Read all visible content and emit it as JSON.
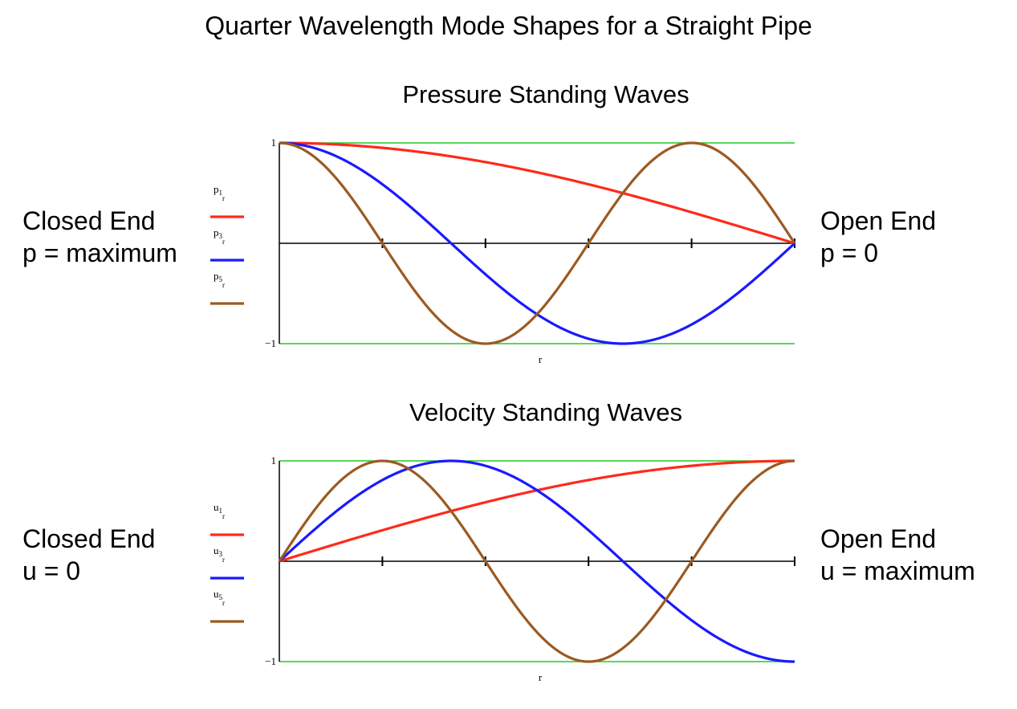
{
  "title": "Quarter Wavelength Mode Shapes for a Straight Pipe",
  "pressure_side": {
    "left": [
      "Closed End",
      "p = maximum"
    ],
    "right": [
      "Open End",
      "p = 0"
    ]
  },
  "velocity_side": {
    "left": [
      "Closed End",
      "u = 0"
    ],
    "right": [
      "Open End",
      "u = maximum"
    ]
  },
  "colors": {
    "red": "#ff2a1a",
    "blue": "#1a1aff",
    "brown": "#9b5a22",
    "green": "#22cc22",
    "axis": "#000000"
  },
  "chart_data": [
    {
      "type": "line",
      "title": "Pressure Standing Waves",
      "xlabel": "r",
      "xlim": [
        0,
        1
      ],
      "ylim": [
        -1,
        1
      ],
      "yticks": [
        {
          "value": 1,
          "label": "1"
        },
        {
          "value": -1,
          "label": "−1"
        }
      ],
      "xticks": [
        0.2,
        0.4,
        0.6,
        0.8,
        1.0
      ],
      "series": [
        {
          "name": "p1",
          "sub": "1",
          "index": "r",
          "letter": "p",
          "color": "#ff2a1a",
          "fn": "cos",
          "mode": 1,
          "x": [
            0,
            0.1,
            0.2,
            0.3,
            0.4,
            0.5,
            0.6,
            0.7,
            0.8,
            0.9,
            1.0
          ],
          "values": [
            1.0,
            0.988,
            0.951,
            0.891,
            0.809,
            0.707,
            0.588,
            0.454,
            0.309,
            0.156,
            0.0
          ]
        },
        {
          "name": "p3",
          "sub": "3",
          "index": "r",
          "letter": "p",
          "color": "#1a1aff",
          "fn": "cos",
          "mode": 3,
          "x": [
            0,
            0.1,
            0.2,
            0.3,
            0.4,
            0.5,
            0.6,
            0.7,
            0.8,
            0.9,
            1.0
          ],
          "values": [
            1.0,
            0.891,
            0.588,
            0.156,
            -0.309,
            -0.707,
            -0.951,
            -0.988,
            -0.809,
            -0.454,
            0.0
          ]
        },
        {
          "name": "p5",
          "sub": "5",
          "index": "r",
          "letter": "p",
          "color": "#9b5a22",
          "fn": "cos",
          "mode": 5,
          "x": [
            0,
            0.1,
            0.2,
            0.3,
            0.4,
            0.5,
            0.6,
            0.7,
            0.8,
            0.9,
            1.0
          ],
          "values": [
            1.0,
            0.707,
            0.0,
            -0.707,
            -1.0,
            -0.707,
            0.0,
            0.707,
            1.0,
            0.707,
            0.0
          ]
        }
      ]
    },
    {
      "type": "line",
      "title": "Velocity Standing Waves",
      "xlabel": "r",
      "xlim": [
        0,
        1
      ],
      "ylim": [
        -1,
        1
      ],
      "yticks": [
        {
          "value": 1,
          "label": "1"
        },
        {
          "value": -1,
          "label": "−1"
        }
      ],
      "xticks": [
        0.2,
        0.4,
        0.6,
        0.8,
        1.0
      ],
      "series": [
        {
          "name": "u1",
          "sub": "1",
          "index": "r",
          "letter": "u",
          "color": "#ff2a1a",
          "fn": "sin",
          "mode": 1,
          "x": [
            0,
            0.1,
            0.2,
            0.3,
            0.4,
            0.5,
            0.6,
            0.7,
            0.8,
            0.9,
            1.0
          ],
          "values": [
            0.0,
            0.156,
            0.309,
            0.454,
            0.588,
            0.707,
            0.809,
            0.891,
            0.951,
            0.988,
            1.0
          ]
        },
        {
          "name": "u3",
          "sub": "3",
          "index": "r",
          "letter": "u",
          "color": "#1a1aff",
          "fn": "sin",
          "mode": 3,
          "x": [
            0,
            0.1,
            0.2,
            0.3,
            0.4,
            0.5,
            0.6,
            0.7,
            0.8,
            0.9,
            1.0
          ],
          "values": [
            0.0,
            0.454,
            0.809,
            0.988,
            0.951,
            0.707,
            0.309,
            -0.156,
            -0.588,
            -0.891,
            -1.0
          ]
        },
        {
          "name": "u5",
          "sub": "5",
          "index": "r",
          "letter": "u",
          "color": "#9b5a22",
          "fn": "sin",
          "mode": 5,
          "x": [
            0,
            0.1,
            0.2,
            0.3,
            0.4,
            0.5,
            0.6,
            0.7,
            0.8,
            0.9,
            1.0
          ],
          "values": [
            0.0,
            0.707,
            1.0,
            0.707,
            0.0,
            -0.707,
            -1.0,
            -0.707,
            0.0,
            0.707,
            1.0
          ]
        }
      ]
    }
  ]
}
